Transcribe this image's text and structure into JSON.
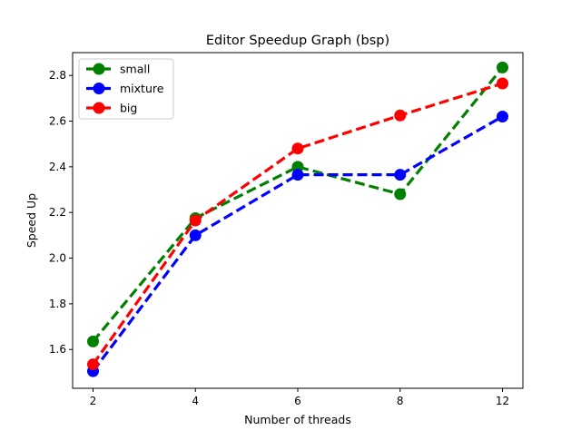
{
  "chart_data": {
    "type": "line",
    "title": "Editor Speedup Graph (bsp)",
    "xlabel": "Number of threads",
    "ylabel": "Speed Up",
    "categories": [
      "2",
      "4",
      "6",
      "8",
      "12"
    ],
    "ylim": [
      1.43,
      2.9
    ],
    "yticks": [
      "1.6",
      "1.8",
      "2.0",
      "2.2",
      "2.4",
      "2.6",
      "2.8"
    ],
    "grid": false,
    "legend_position": "top-left",
    "series": [
      {
        "name": "small",
        "color": "#008000",
        "values": [
          1.635,
          2.175,
          2.4,
          2.28,
          2.835
        ]
      },
      {
        "name": "mixture",
        "color": "#0000ff",
        "values": [
          1.505,
          2.1,
          2.365,
          2.365,
          2.62
        ]
      },
      {
        "name": "big",
        "color": "#ff0000",
        "values": [
          1.535,
          2.165,
          2.48,
          2.625,
          2.765
        ]
      }
    ]
  }
}
